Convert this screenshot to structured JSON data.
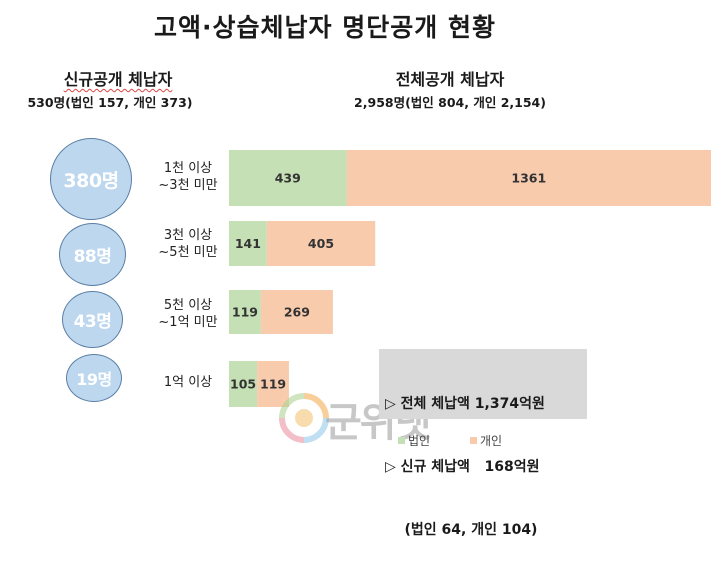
{
  "title": "고액·상습체납자 명단공개 현황",
  "left_header": {
    "line1": "신규공개 체납자",
    "line2": "530명(법인 157, 개인 373)"
  },
  "right_header": {
    "line1": "전체공개 체납자",
    "line2": "2,958명(법인 804, 개인 2,154)"
  },
  "circles": [
    "380명",
    "88명",
    "43명",
    "19명"
  ],
  "row_labels": [
    [
      "1천 이상",
      "~3천 미만"
    ],
    [
      "3천 이상",
      "~5천 미만"
    ],
    [
      "5천 이상",
      "~1억 미만"
    ],
    [
      "1억 이상"
    ]
  ],
  "colors": {
    "corporate": "#c5e0b4",
    "individual": "#f8cbad",
    "circle": "#bdd7ee"
  },
  "chart_data": {
    "type": "bar",
    "orientation": "horizontal",
    "stacked": true,
    "categories": [
      "1천 이상 ~3천 미만",
      "3천 이상 ~5천 미만",
      "5천 이상 ~1억 미만",
      "1억 이상"
    ],
    "series": [
      {
        "name": "법인",
        "values": [
          439,
          141,
          119,
          105
        ],
        "color": "#c5e0b4"
      },
      {
        "name": "개인",
        "values": [
          1361,
          405,
          269,
          119
        ],
        "color": "#f8cbad"
      }
    ],
    "legend_position": "bottom-right"
  },
  "info": {
    "line1": "▷ 전체 체납액 1,374억원",
    "line2": "▷ 신규 체납액   168억원",
    "line3": "    (법인 64, 개인 104)"
  },
  "legend": {
    "corporate": "법인",
    "individual": "개인"
  },
  "watermark": {
    "text": "군위넷",
    "icon": "sun-logo-icon"
  }
}
